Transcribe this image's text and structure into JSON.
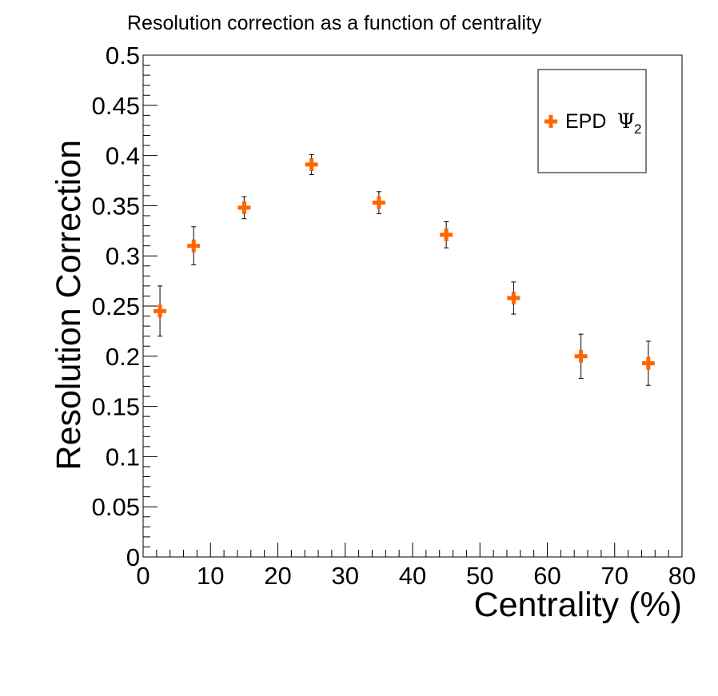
{
  "chart_data": {
    "type": "scatter",
    "title": "Resolution correction as a function of centrality",
    "xlabel": "Centrality (%)",
    "ylabel": "Resolution Correction",
    "xlim": [
      0,
      80
    ],
    "ylim": [
      0,
      0.5
    ],
    "x_ticks": [
      "0",
      "10",
      "20",
      "30",
      "40",
      "50",
      "60",
      "70",
      "80"
    ],
    "y_ticks": [
      "0",
      "0.05",
      "0.1",
      "0.15",
      "0.2",
      "0.25",
      "0.3",
      "0.35",
      "0.4",
      "0.45",
      "0.5"
    ],
    "grid": false,
    "legend_position": "top-right",
    "series": [
      {
        "name": "EPD Ψ2",
        "legend_text": "EPD",
        "legend_symbol": "Ψ",
        "legend_subscript": "2",
        "color": "#ff6600",
        "marker": "cross",
        "x": [
          2.5,
          7.5,
          15,
          25,
          35,
          45,
          55,
          65,
          75
        ],
        "y": [
          0.245,
          0.31,
          0.348,
          0.391,
          0.353,
          0.321,
          0.258,
          0.2,
          0.193
        ],
        "y_err": [
          0.025,
          0.019,
          0.011,
          0.01,
          0.011,
          0.013,
          0.016,
          0.022,
          0.022
        ]
      }
    ]
  }
}
